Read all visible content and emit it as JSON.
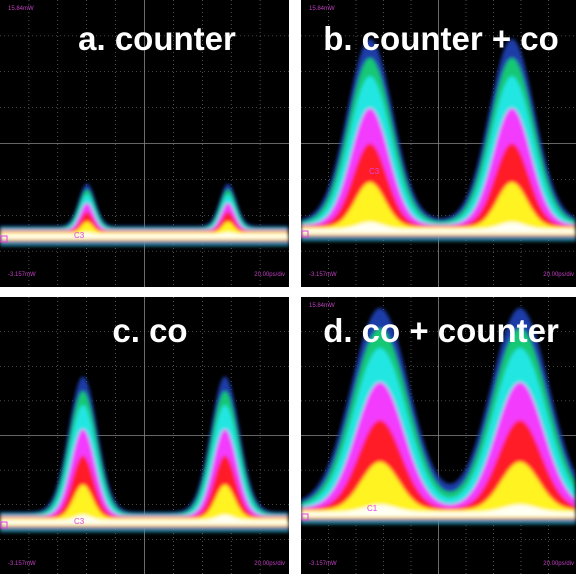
{
  "panels": [
    {
      "title": "a. counter",
      "top_label": "15.84mW",
      "bottom_label": "-3.157mW",
      "time_label": "20.00ps/div",
      "channel": "C3"
    },
    {
      "title": "b. counter + co",
      "top_label": "15.84mW",
      "bottom_label": "-3.157mW",
      "time_label": "20.00ps/div",
      "channel": "C3"
    },
    {
      "title": "c. co",
      "bottom_label": "-3.157mW",
      "time_label": "20.00ps/div",
      "channel": "C3"
    },
    {
      "title": "d. co + counter",
      "top_label": "15.84mW",
      "bottom_label": "-3.157mW",
      "time_label": "20.00ps/div",
      "channel": "C1"
    }
  ]
}
